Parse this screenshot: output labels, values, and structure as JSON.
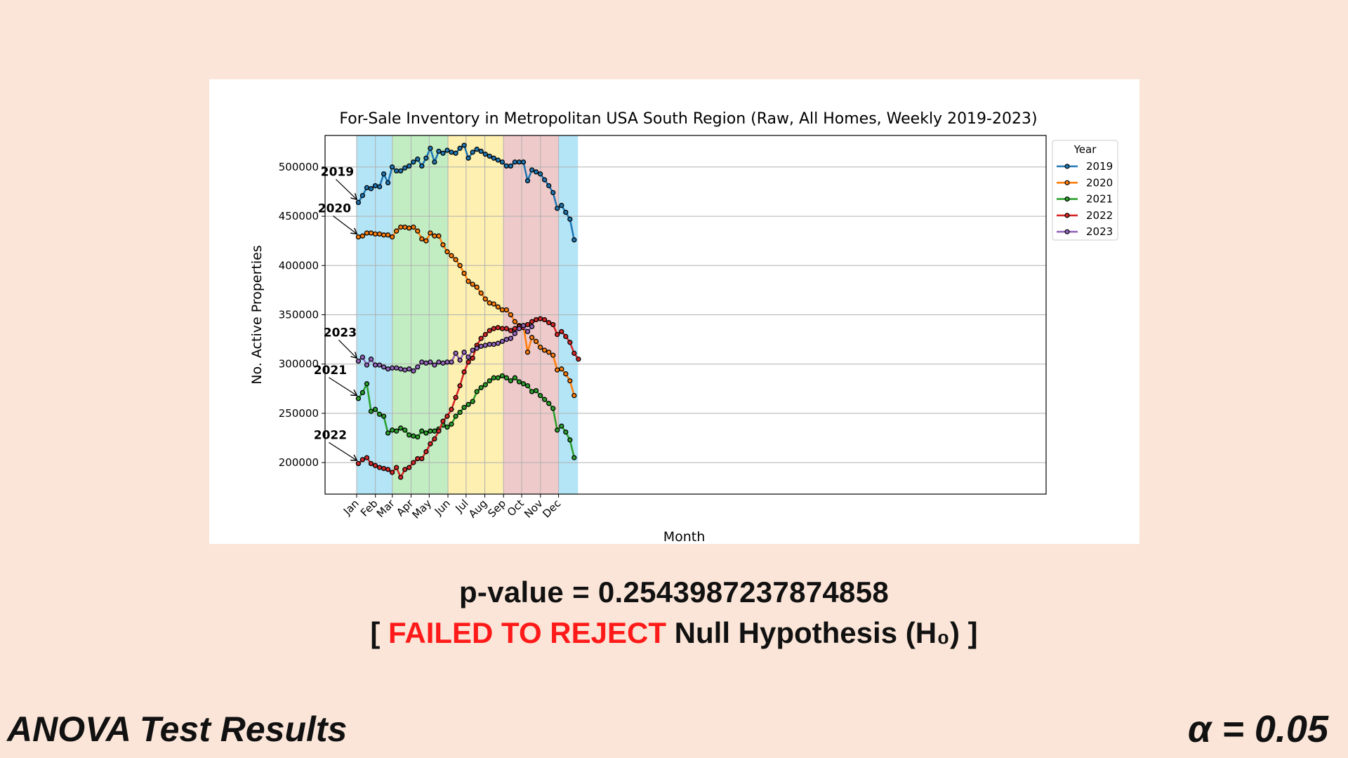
{
  "chart_data": {
    "type": "line",
    "title": "For-Sale Inventory in Metropolitan USA South Region (Raw, All Homes, Weekly 2019-2023)",
    "xlabel": "Month",
    "ylabel": "No. Active Properties",
    "ylim": [
      168000,
      532000
    ],
    "yticks": [
      200000,
      250000,
      300000,
      350000,
      400000,
      450000,
      500000
    ],
    "xtick_labels": [
      "Jan",
      "Feb",
      "Mar",
      "Apr",
      "May",
      "Jun",
      "Jul",
      "Aug",
      "Sep",
      "Oct",
      "Nov",
      "Dec"
    ],
    "x_unit": "week of year",
    "grid": true,
    "legend": {
      "title": "Year",
      "placement": "upper-right outside"
    },
    "season_bands": [
      {
        "from_month": "Dec",
        "to_month": "Mar",
        "color": "#b3e5f7"
      },
      {
        "from_month": "Mar",
        "to_month": "Jun",
        "color": "#c2edc2"
      },
      {
        "from_month": "Jun",
        "to_month": "Sep",
        "color": "#fdf0b1"
      },
      {
        "from_month": "Sep",
        "to_month": "Dec",
        "color": "#efcaca"
      }
    ],
    "series": [
      {
        "name": "2019",
        "color": "#1f77b4",
        "start_label": "2019",
        "values": [
          464000,
          471000,
          479000,
          478000,
          481000,
          480000,
          493000,
          484000,
          500000,
          496000,
          496000,
          499000,
          501000,
          505000,
          508000,
          501000,
          509000,
          519000,
          505000,
          516000,
          514000,
          517000,
          515000,
          514000,
          519000,
          522000,
          509000,
          515000,
          518000,
          516000,
          513000,
          511000,
          509000,
          507000,
          505000,
          501000,
          501000,
          505000,
          505000,
          505000,
          486000,
          497000,
          495000,
          493000,
          487000,
          481000,
          474000,
          458000,
          461000,
          454000,
          447000,
          426000
        ]
      },
      {
        "name": "2020",
        "color": "#ff7f0e",
        "start_label": "2020",
        "values": [
          429000,
          430000,
          433000,
          433000,
          432000,
          432000,
          431000,
          431000,
          429000,
          435000,
          439000,
          439000,
          438000,
          439000,
          435000,
          427000,
          425000,
          433000,
          430000,
          430000,
          421000,
          414000,
          410000,
          406000,
          400000,
          392000,
          384000,
          381000,
          378000,
          372000,
          366000,
          362000,
          361000,
          358000,
          355000,
          355000,
          350000,
          343000,
          339000,
          339000,
          312000,
          327000,
          323000,
          317000,
          314000,
          312000,
          309000,
          294000,
          295000,
          290000,
          283000,
          268000
        ]
      },
      {
        "name": "2021",
        "color": "#2ca02c",
        "start_label": "2021",
        "values": [
          265000,
          271000,
          280000,
          252000,
          254000,
          249000,
          247000,
          230000,
          233000,
          232000,
          235000,
          233000,
          228000,
          227000,
          226000,
          232000,
          230000,
          232000,
          232000,
          234000,
          238000,
          236000,
          239000,
          247000,
          251000,
          256000,
          259000,
          262000,
          272000,
          276000,
          279000,
          283000,
          286000,
          286000,
          288000,
          286000,
          283000,
          286000,
          282000,
          280000,
          278000,
          272000,
          273000,
          268000,
          264000,
          260000,
          255000,
          233000,
          237000,
          231000,
          223000,
          205000
        ]
      },
      {
        "name": "2022",
        "color": "#d62728",
        "start_label": "2022",
        "values": [
          199000,
          203000,
          205000,
          199000,
          197000,
          195000,
          194000,
          193000,
          190000,
          195000,
          185000,
          193000,
          195000,
          200000,
          204000,
          204000,
          211000,
          219000,
          224000,
          232000,
          242000,
          247000,
          254000,
          266000,
          278000,
          292000,
          302000,
          306000,
          319000,
          326000,
          330000,
          334000,
          336000,
          337000,
          336000,
          336000,
          334000,
          336000,
          338000,
          337000,
          340000,
          343000,
          345000,
          346000,
          345000,
          342000,
          340000,
          330000,
          333000,
          328000,
          322000,
          311000,
          305000
        ]
      },
      {
        "name": "2023",
        "color": "#9467bd",
        "start_label": "2023",
        "values": [
          303000,
          307000,
          299000,
          305000,
          299000,
          299000,
          297000,
          295000,
          296000,
          296000,
          295000,
          294000,
          295000,
          293000,
          297000,
          302000,
          301000,
          302000,
          299000,
          302000,
          301000,
          302000,
          302000,
          311000,
          304000,
          312000,
          307000,
          314000,
          316000,
          318000,
          319000,
          320000,
          320000,
          321000,
          323000,
          325000,
          326000,
          331000,
          336000,
          339000,
          333000,
          338000
        ]
      }
    ]
  },
  "stats": {
    "pvalue_line": "p-value = 0.2543987237874858",
    "verdict_open": "[ ",
    "verdict_reject": "FAILED TO REJECT",
    "verdict_rest": " Null Hypothesis (H₀) ]"
  },
  "footer": {
    "title": "ANOVA Test Results",
    "alpha": "α = 0.05"
  }
}
